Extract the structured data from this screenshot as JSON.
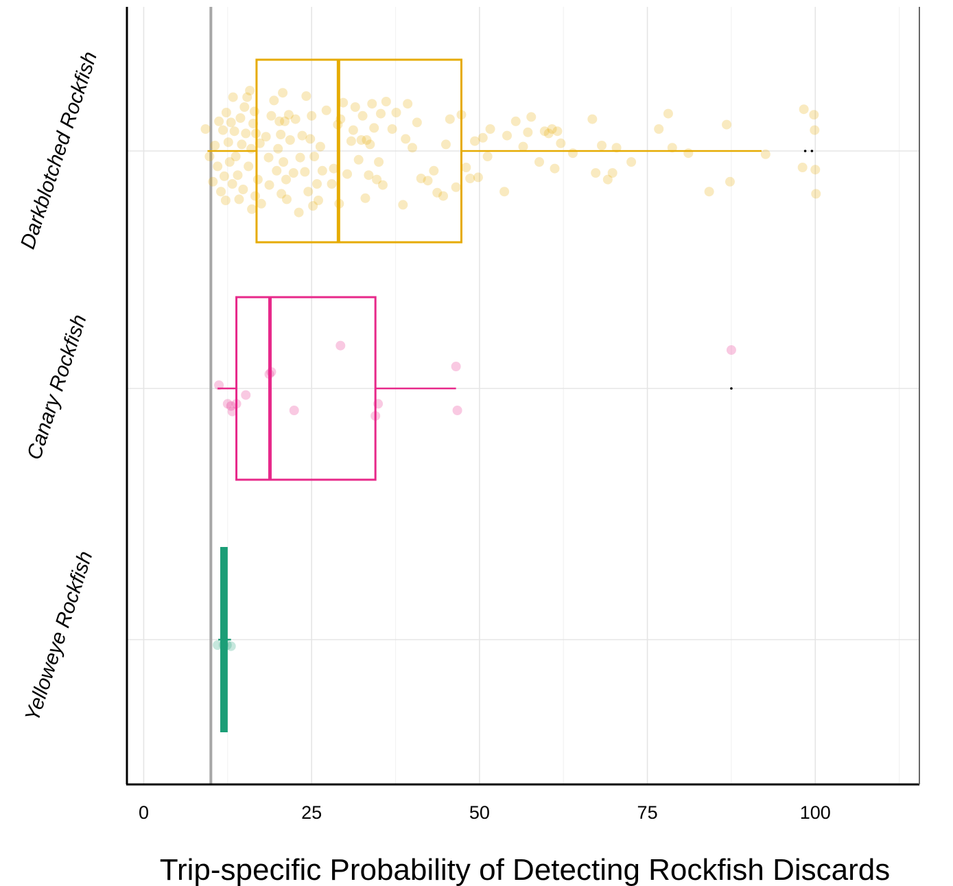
{
  "chart_data": {
    "type": "box",
    "orientation": "horizontal",
    "title": "",
    "xlabel": "Trip-specific Probability of Detecting Rockfish Discards",
    "ylabel": "",
    "xlim": [
      -2.5,
      115.5
    ],
    "x_ticks": [
      0,
      25,
      50,
      75,
      100
    ],
    "x_tick_labels": [
      "0",
      "25",
      "50",
      "75",
      "100"
    ],
    "reference_line_x": 10,
    "grid": true,
    "colors": {
      "Darkblotched Rockfish": "#e6ab02",
      "Canary Rockfish": "#e7298a",
      "Yelloweye Rockfish": "#1b9e77",
      "reference_line": "#a6a6a6",
      "grid": "#e5e5e5"
    },
    "categories": [
      "Darkblotched Rockfish",
      "Canary Rockfish",
      "Yelloweye Rockfish"
    ],
    "series": [
      {
        "name": "Darkblotched Rockfish",
        "whisker_low": 9.5,
        "q1": 16.8,
        "median": 29,
        "q3": 47.3,
        "whisker_high": 92,
        "outliers": [
          98.5,
          99.5
        ],
        "points": [
          [
            9.2,
            0.2
          ],
          [
            9.8,
            -0.05
          ],
          [
            10.3,
            -0.28
          ],
          [
            10.6,
            0.05
          ],
          [
            11,
            -0.14
          ],
          [
            11.2,
            0.27
          ],
          [
            11.5,
            -0.37
          ],
          [
            11.8,
            0.19
          ],
          [
            12,
            -0.23
          ],
          [
            12.2,
            -0.45
          ],
          [
            12.3,
            0.35
          ],
          [
            12.6,
            0.08
          ],
          [
            12.8,
            -0.1
          ],
          [
            13,
            0.26
          ],
          [
            13.2,
            -0.3
          ],
          [
            13.3,
            0.49
          ],
          [
            13.5,
            0.18
          ],
          [
            13.7,
            -0.05
          ],
          [
            14,
            -0.22
          ],
          [
            14.2,
            -0.44
          ],
          [
            14.4,
            0.3
          ],
          [
            14.6,
            0.06
          ],
          [
            14.8,
            -0.35
          ],
          [
            15,
            0.4
          ],
          [
            15.2,
            0.16
          ],
          [
            15.4,
            0.49
          ],
          [
            15.6,
            -0.14
          ],
          [
            15.8,
            0.55
          ],
          [
            16,
            0.02
          ],
          [
            16.1,
            -0.53
          ],
          [
            16.3,
            0.25
          ],
          [
            16.5,
            0.36
          ],
          [
            16.6,
            -0.41
          ],
          [
            16.7,
            0.16
          ],
          [
            17,
            -0.26
          ],
          [
            17.3,
            0.07
          ],
          [
            17.5,
            -0.48
          ],
          [
            18.2,
            0.13
          ],
          [
            18.6,
            -0.06
          ],
          [
            18.7,
            -0.31
          ],
          [
            19,
            0.32
          ],
          [
            19.4,
            0.46
          ],
          [
            19.8,
            -0.18
          ],
          [
            20,
            0.02
          ],
          [
            20.2,
            0.27
          ],
          [
            20.4,
            0.15
          ],
          [
            20.5,
            -0.39
          ],
          [
            20.7,
            0.53
          ],
          [
            20.8,
            -0.1
          ],
          [
            21,
            0.27
          ],
          [
            21.2,
            -0.26
          ],
          [
            21.3,
            -0.44
          ],
          [
            21.6,
            0.33
          ],
          [
            21.8,
            0.1
          ],
          [
            22.3,
            -0.2
          ],
          [
            22.6,
            0.29
          ],
          [
            23.1,
            -0.56
          ],
          [
            23.3,
            -0.06
          ],
          [
            23.6,
            0.14
          ],
          [
            24,
            -0.19
          ],
          [
            24.2,
            0.5
          ],
          [
            24.5,
            -0.37
          ],
          [
            24.8,
            0.11
          ],
          [
            25,
            0.32
          ],
          [
            25.2,
            -0.5
          ],
          [
            25.4,
            -0.05
          ],
          [
            25.8,
            -0.3
          ],
          [
            26,
            -0.45
          ],
          [
            26.3,
            0.04
          ],
          [
            26.6,
            -0.18
          ],
          [
            27.2,
            0.37
          ],
          [
            28,
            -0.3
          ],
          [
            28.3,
            -0.16
          ],
          [
            28.9,
            0.24
          ],
          [
            29.1,
            -0.48
          ],
          [
            29.3,
            0.29
          ],
          [
            29.7,
            0.44
          ],
          [
            30.3,
            -0.21
          ],
          [
            30.9,
            0.09
          ],
          [
            31.2,
            0.19
          ],
          [
            31.5,
            0.4
          ],
          [
            32,
            -0.08
          ],
          [
            32.4,
            0.1
          ],
          [
            32.6,
            0.32
          ],
          [
            33,
            -0.43
          ],
          [
            33.2,
            0.1
          ],
          [
            33.5,
            -0.22
          ],
          [
            33.7,
            0.06
          ],
          [
            34,
            0.43
          ],
          [
            34.3,
            0.21
          ],
          [
            34.7,
            -0.26
          ],
          [
            35,
            -0.1
          ],
          [
            35.3,
            0.34
          ],
          [
            35.6,
            -0.31
          ],
          [
            36.1,
            0.45
          ],
          [
            37,
            0.2
          ],
          [
            37.6,
            0.35
          ],
          [
            38.6,
            -0.49
          ],
          [
            39,
            0.11
          ],
          [
            39.3,
            0.43
          ],
          [
            40,
            0.03
          ],
          [
            40.7,
            0.26
          ],
          [
            41.3,
            -0.25
          ],
          [
            42.3,
            -0.27
          ],
          [
            43.2,
            -0.18
          ],
          [
            43.7,
            -0.38
          ],
          [
            44.6,
            -0.41
          ],
          [
            45,
            0.06
          ],
          [
            45.6,
            0.29
          ],
          [
            46.5,
            -0.33
          ],
          [
            47.3,
            0.33
          ],
          [
            48,
            -0.15
          ],
          [
            48.6,
            -0.25
          ],
          [
            49.3,
            0.09
          ],
          [
            49.8,
            -0.24
          ],
          [
            50.5,
            0.12
          ],
          [
            51.2,
            -0.05
          ],
          [
            51.6,
            0.2
          ],
          [
            53.7,
            -0.37
          ],
          [
            54.1,
            0.14
          ],
          [
            55.4,
            0.27
          ],
          [
            56.5,
            0.04
          ],
          [
            57.2,
            0.17
          ],
          [
            57.7,
            0.31
          ],
          [
            58.9,
            -0.1
          ],
          [
            59.7,
            0.18
          ],
          [
            60.3,
            0.16
          ],
          [
            60.8,
            0.2
          ],
          [
            61.2,
            -0.16
          ],
          [
            61.6,
            0.18
          ],
          [
            62.1,
            0.07
          ],
          [
            63.9,
            -0.02
          ],
          [
            66.8,
            0.29
          ],
          [
            67.3,
            -0.2
          ],
          [
            68.2,
            0.05
          ],
          [
            69.1,
            -0.26
          ],
          [
            69.8,
            -0.2
          ],
          [
            70.4,
            0.03
          ],
          [
            72.6,
            -0.1
          ],
          [
            76.7,
            0.2
          ],
          [
            78.1,
            0.34
          ],
          [
            78.7,
            0.03
          ],
          [
            81.1,
            -0.02
          ],
          [
            84.2,
            -0.37
          ],
          [
            86.8,
            0.24
          ],
          [
            87.3,
            -0.28
          ],
          [
            92.6,
            -0.03
          ],
          [
            98.1,
            -0.15
          ],
          [
            98.3,
            0.38
          ],
          [
            99.8,
            0.33
          ],
          [
            99.9,
            0.19
          ],
          [
            100,
            -0.17
          ],
          [
            100.1,
            -0.39
          ]
        ]
      },
      {
        "name": "Canary Rockfish",
        "whisker_low": 11,
        "q1": 13.8,
        "median": 18.8,
        "q3": 34.5,
        "whisker_high": 46.5,
        "outliers": [
          87.5
        ],
        "points": [
          [
            11.2,
            0.03
          ],
          [
            12.5,
            -0.14
          ],
          [
            13,
            -0.16
          ],
          [
            13.2,
            -0.21
          ],
          [
            13.8,
            -0.14
          ],
          [
            15.2,
            -0.06
          ],
          [
            18.7,
            0.13
          ],
          [
            19,
            0.15
          ],
          [
            22.4,
            -0.2
          ],
          [
            29.3,
            0.39
          ],
          [
            34.5,
            -0.25
          ],
          [
            34.9,
            -0.14
          ],
          [
            46.5,
            0.2
          ],
          [
            46.7,
            -0.2
          ],
          [
            87.5,
            0.35
          ]
        ]
      },
      {
        "name": "Yelloweye Rockfish",
        "whisker_low": 11.1,
        "q1": 11.6,
        "median": 12,
        "q3": 12.3,
        "whisker_high": 13,
        "outliers": [],
        "points": [
          [
            11,
            -0.05
          ],
          [
            11.9,
            -0.05
          ],
          [
            12.4,
            -0.05
          ],
          [
            13,
            -0.06
          ]
        ]
      }
    ]
  }
}
